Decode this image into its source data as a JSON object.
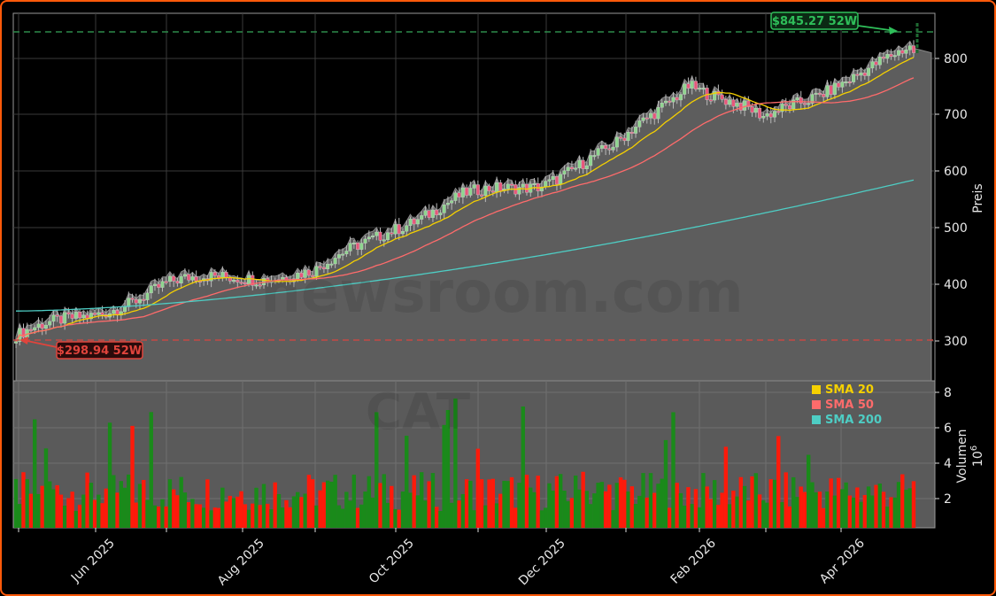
{
  "chart_data": {
    "type": "candlestick",
    "ticker": "CAT",
    "watermark": "newsroom.com",
    "panels": {
      "price": {
        "ylabel": "Preis",
        "ylim": [
          240,
          870
        ],
        "yticks": [
          300,
          400,
          500,
          600,
          700,
          800
        ],
        "grid": true
      },
      "volume": {
        "ylabel": "Volumen",
        "yscale_label": "10^6",
        "ylim": [
          0.4,
          8.6
        ],
        "yticks": [
          2,
          4,
          6,
          8
        ],
        "grid": true
      }
    },
    "x_ticks": [
      "Jun 2025",
      "Aug 2025",
      "Oct 2025",
      "Dec 2025",
      "Feb 2026",
      "Apr 2026"
    ],
    "annotations": {
      "high_52w": {
        "label": "$845.27 52W",
        "value": 845.27,
        "color": "#2fbf5a"
      },
      "low_52w": {
        "label": "$298.94 52W",
        "value": 298.94,
        "color": "#e0443c"
      }
    },
    "legend": [
      {
        "name": "SMA 20",
        "color": "#f5d000"
      },
      {
        "name": "SMA 50",
        "color": "#ff6b6b"
      },
      {
        "name": "SMA 200",
        "color": "#4ecdc4"
      }
    ],
    "series": {
      "close_monthly_approx": {
        "x": [
          "May 2025",
          "Jun 2025",
          "Jul 2025",
          "Aug 2025",
          "Sep 2025",
          "Oct 2025",
          "Nov 2025",
          "Dec 2025",
          "Jan 2026",
          "Feb 2026",
          "Mar 2026",
          "Apr 2026",
          "May 2026"
        ],
        "values": [
          310,
          345,
          400,
          415,
          420,
          500,
          555,
          580,
          640,
          760,
          690,
          760,
          815
        ]
      },
      "sma20_end": 785,
      "sma50_end": 745,
      "sma200_end": 585,
      "sma200_start": 353,
      "last_close": 810
    },
    "volume_millions_approx": {
      "max": 7.2,
      "typical": [
        1.5,
        3.5
      ],
      "up_color": "#1a8a1a",
      "down_color": "#ff1a0a"
    }
  },
  "labels": {
    "price_axis_title": "Preis",
    "volume_axis_title": "Volumen",
    "volume_scale": "10",
    "volume_scale_exp": "6",
    "high_label": "$845.27 52W",
    "low_label": "$298.94 52W",
    "watermark_main": "newsroom.com",
    "watermark_ticker": "CAT",
    "legend_sma20": "SMA 20",
    "legend_sma50": "SMA 50",
    "legend_sma200": "SMA 200",
    "price_ticks": [
      "800",
      "700",
      "600",
      "500",
      "400",
      "300"
    ],
    "volume_ticks": [
      "8",
      "6",
      "4",
      "2"
    ],
    "x_ticks": [
      "Jun 2025",
      "Aug 2025",
      "Oct 2025",
      "Dec 2025",
      "Feb 2026",
      "Apr 2026"
    ]
  }
}
